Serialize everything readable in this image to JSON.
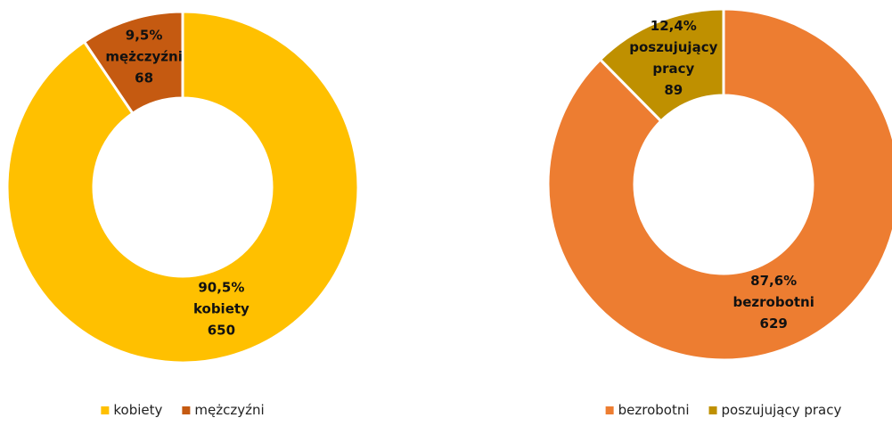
{
  "chart_data": [
    {
      "type": "donut",
      "categories": [
        "kobiety",
        "mężczyźni"
      ],
      "values": [
        650,
        68
      ],
      "shares": [
        90.5,
        9.5
      ],
      "share_labels": [
        "90,5%",
        "9,5%"
      ],
      "colors": [
        "#FFC000",
        "#C55A11"
      ],
      "legend": "bottom"
    },
    {
      "type": "donut",
      "categories": [
        "bezrobotni",
        "poszujujący pracy"
      ],
      "values": [
        629,
        89
      ],
      "shares": [
        87.6,
        12.4
      ],
      "share_labels": [
        "87,6%",
        "12,4%"
      ],
      "colors": [
        "#ED7D31",
        "#BF9000"
      ],
      "legend": "bottom"
    }
  ]
}
